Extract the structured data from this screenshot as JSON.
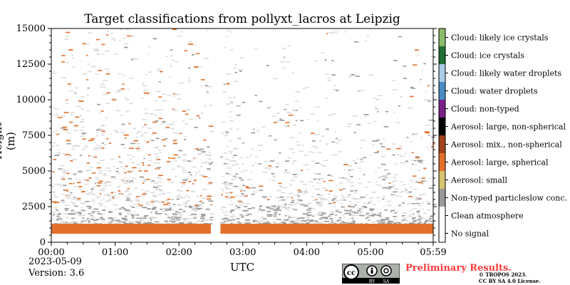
{
  "chart_data": {
    "type": "heatmap",
    "title": "Target classifications from pollyxt_lacros at Leipzig",
    "xlabel": "UTC",
    "ylabel": "Height (m)",
    "x_ticks": [
      "00:00",
      "01:00",
      "02:00",
      "03:00",
      "04:00",
      "05:00",
      "05:59"
    ],
    "x_range_hours": [
      0,
      5.983
    ],
    "data_gap_hours": [
      2.5,
      2.65
    ],
    "y_ticks": [
      0,
      2500,
      5000,
      7500,
      10000,
      12500,
      15000
    ],
    "ylim": [
      0,
      15000
    ],
    "grid": false,
    "colorbar": {
      "position": "right",
      "classes": [
        {
          "label": "No signal",
          "color": "#ffffff"
        },
        {
          "label": "Clean atmosphere",
          "color": "#ffffff"
        },
        {
          "label": "Non-typed particleslow conc.",
          "color": "#999999"
        },
        {
          "label": "Aerosol: small",
          "color": "#d8c36e"
        },
        {
          "label": "Aerosol: large, spherical",
          "color": "#e2702c"
        },
        {
          "label": "Aerosol: mix., non-spherical",
          "color": "#a0421b"
        },
        {
          "label": "Aerosol: large, non-spherical",
          "color": "#000000"
        },
        {
          "label": "Cloud: non-typed",
          "color": "#7a2088"
        },
        {
          "label": "Cloud: water droplets",
          "color": "#4a8bc4"
        },
        {
          "label": "Cloud: likely water droplets",
          "color": "#a9cdea"
        },
        {
          "label": "Cloud: ice crystals",
          "color": "#1f6f36"
        },
        {
          "label": "Cloud: likely ice crystals",
          "color": "#8cbd6a"
        }
      ]
    },
    "layers": [
      {
        "class": "Aerosol: large, spherical",
        "from_m": 600,
        "to_m": 1300,
        "note_color": "#e2702c"
      },
      {
        "class": "Non-typed particleslow conc.",
        "from_m": 1300,
        "to_m": 2600
      },
      {
        "class": "Clean atmosphere",
        "from_m": 2600,
        "to_m": 15000
      }
    ]
  },
  "footer": {
    "date": "2023-05-09",
    "version": "Version: 3.6",
    "preliminary": "Preliminary Results.",
    "copyright_line1": "© TROPOS 2023.",
    "copyright_line2": "CC BY SA 4.0 License.",
    "badge_by": "BY",
    "badge_sa": "SA"
  }
}
